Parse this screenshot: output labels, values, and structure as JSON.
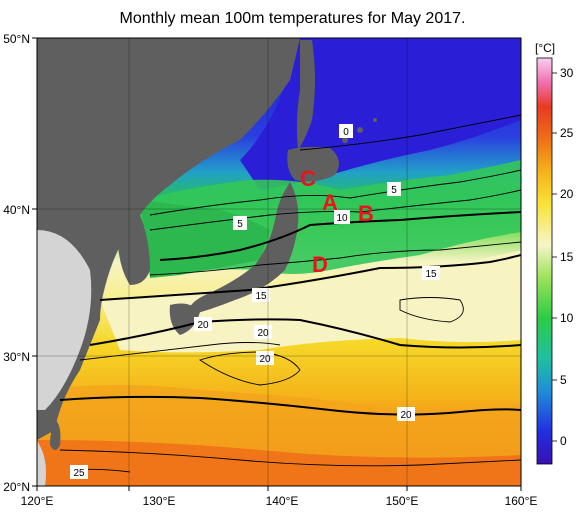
{
  "title": "Monthly mean 100m temperatures for May 2017.",
  "lat_labels": [
    "50°N",
    "40°N",
    "30°N",
    "20°N"
  ],
  "lon_labels": [
    "120°E",
    "130°E",
    "140°E",
    "150°E",
    "160°E"
  ],
  "colorbar": {
    "unit": "[°C]",
    "ticks": [
      "30",
      "25",
      "20",
      "15",
      "10",
      "5",
      "0"
    ]
  },
  "contour_labels": [
    "0",
    "5",
    "5",
    "10",
    "15",
    "15",
    "20",
    "20",
    "20",
    "20",
    "25"
  ],
  "region_markers": [
    "A",
    "B",
    "C",
    "D"
  ],
  "colors": {
    "cold": "#2a1fd6",
    "cool": "#1fb26a",
    "mild": "#f7f3b8",
    "warm": "#f5c21a",
    "hot": "#ec6e16",
    "land": "#5f5f5f",
    "marker": "#e8141a"
  }
}
